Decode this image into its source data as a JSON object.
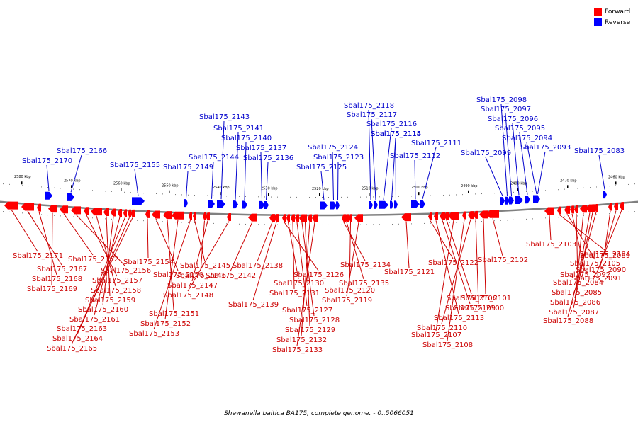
{
  "legend": [
    {
      "label": "Forward",
      "color": "#ff0000"
    },
    {
      "label": "Reverse",
      "color": "#0000ff"
    }
  ],
  "caption": "Shewanella baltica BA175, complete genome. - 0..5066051",
  "colors": {
    "forward": "#ff0000",
    "reverse": "#0000ff",
    "label_forward": "#cc0000",
    "label_reverse": "#0000cc",
    "backbone": "#808080"
  },
  "kbp_ticks": [
    "2580 kbp",
    "2570 kbp",
    "2560 kbp",
    "2550 kbp",
    "2540 kbp",
    "2530 kbp",
    "2520 kbp",
    "2510 kbp",
    "2500 kbp",
    "2490 kbp",
    "2480 kbp",
    "2470 kbp",
    "2460 kbp"
  ],
  "reverse_genes": [
    "Sbal175_2170",
    "Sbal175_2166",
    "Sbal175_2155",
    "Sbal175_2149",
    "Sbal175_2144",
    "Sbal175_2143",
    "Sbal175_2141",
    "Sbal175_2140",
    "Sbal175_2137",
    "Sbal175_2136",
    "Sbal175_2125",
    "Sbal175_2124",
    "Sbal175_2123",
    "Sbal175_2118",
    "Sbal175_2117",
    "Sbal175_2116",
    "Sbal175_2115",
    "Sbal175_2114",
    "Sbal175_2112",
    "Sbal175_2111",
    "Sbal175_2099",
    "Sbal175_2098",
    "Sbal175_2097",
    "Sbal175_2096",
    "Sbal175_2095",
    "Sbal175_2094",
    "Sbal175_2093",
    "Sbal175_2083"
  ],
  "forward_genes": [
    "Sbal175_2171",
    "Sbal175_2167",
    "Sbal175_2168",
    "Sbal175_2169",
    "Sbal175_2162",
    "Sbal175_2156",
    "Sbal175_2157",
    "Sbal175_2158",
    "Sbal175_2159",
    "Sbal175_2160",
    "Sbal175_2161",
    "Sbal175_2163",
    "Sbal175_2164",
    "Sbal175_2165",
    "Sbal175_2154",
    "Sbal175_2150",
    "Sbal175_2151",
    "Sbal175_2152",
    "Sbal175_2153",
    "Sbal175_2145",
    "Sbal175_2146",
    "Sbal175_2147",
    "Sbal175_2148",
    "Sbal175_2142",
    "Sbal175_2138",
    "Sbal175_2139",
    "Sbal175_2126",
    "Sbal175_2130",
    "Sbal175_2131",
    "Sbal175_2127",
    "Sbal175_2128",
    "Sbal175_2129",
    "Sbal175_2132",
    "Sbal175_2133",
    "Sbal175_2134",
    "Sbal175_2135",
    "Sbal175_2120",
    "Sbal175_2119",
    "Sbal175_2121",
    "Sbal175_2122",
    "Sbal175_2113",
    "Sbal175_2109",
    "Sbal175_2106",
    "Sbal175_2107",
    "Sbal175_2108",
    "Sbal175_2110",
    "Sbal175_2100",
    "Sbal175_2101",
    "Sbal175_2102",
    "Sbal175_2103",
    "Sbal175_2104",
    "Sbal175_2105",
    "Sbal175_2092",
    "Sbal175_2084",
    "Sbal175_2085",
    "Sbal175_2086",
    "Sbal175_2087",
    "Sbal175_2088",
    "Sbal175_2089",
    "Sbal175_2090",
    "Sbal175_2091"
  ]
}
